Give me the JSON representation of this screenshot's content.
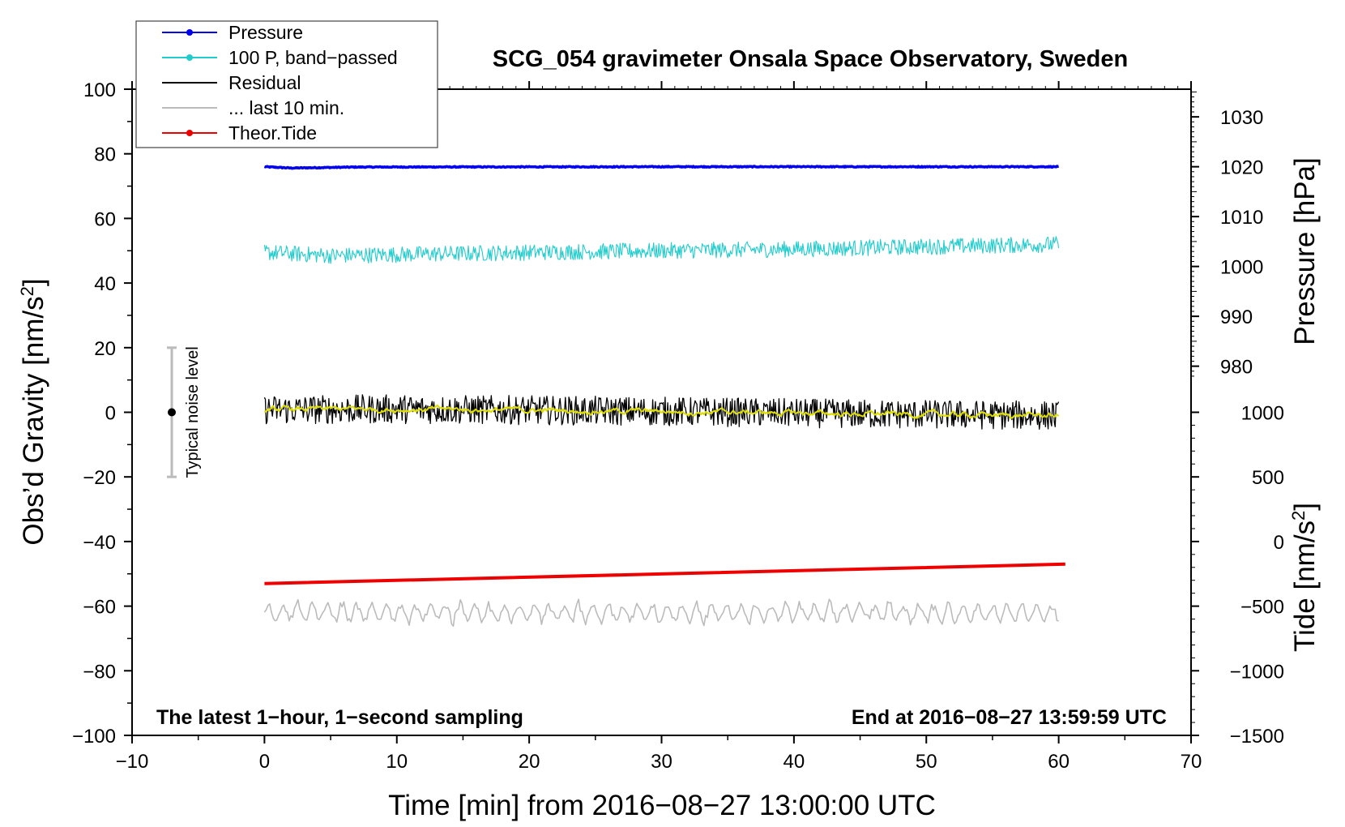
{
  "chart_data": {
    "type": "line",
    "title": "SCG_054 gravimeter Onsala Space Observatory, Sweden",
    "xlabel": "Time [min] from 2016−08−27 13:00:00 UTC",
    "ylabel_main": "Obs’d Gravity [nm/s",
    "ylabel_pressure": "Pressure [hPa]",
    "ylabel_tide": "Tide [nm/s",
    "ylabel_sup": "2",
    "ylabel_close": "]",
    "xlim": [
      -10,
      70
    ],
    "ylim": [
      -100,
      100
    ],
    "x_ticks": [
      "−10",
      "0",
      "10",
      "20",
      "30",
      "40",
      "50",
      "60",
      "70"
    ],
    "y_ticks": [
      "−100",
      "−80",
      "−60",
      "−40",
      "−20",
      "0",
      "20",
      "40",
      "60",
      "80",
      "100"
    ],
    "pressure_ticks": [
      "980",
      "990",
      "1000",
      "1010",
      "1020",
      "1030"
    ],
    "tide_ticks": [
      "−1500",
      "−1000",
      "−500",
      "0",
      "500",
      "1000"
    ],
    "annotation_left": "The latest 1−hour, 1−second sampling",
    "annotation_right": "End at 2016−08−27 13:59:59 UTC",
    "noise_label": "Typical noise level",
    "noise_bar": {
      "x": -7,
      "center": 0,
      "half_range": 20
    },
    "legend": [
      {
        "label": "Pressure",
        "color": "#0000ee",
        "marker": true
      },
      {
        "label": "100 P, band−passed",
        "color": "#22cccc",
        "marker": true
      },
      {
        "label": "Residual",
        "color": "#000000",
        "marker": false
      },
      {
        "label": "... last 10 min.",
        "color": "#bbbbbb",
        "marker": false
      },
      {
        "label": "Theor.Tide",
        "color": "#ee0000",
        "marker": true
      }
    ],
    "series": [
      {
        "name": "Pressure",
        "color": "#0000ee",
        "x": [
          0,
          2,
          7,
          30,
          60
        ],
        "values": [
          76,
          75.6,
          75.9,
          76,
          76
        ],
        "noise": 0.15
      },
      {
        "name": "100 P, band-passed",
        "color": "#22cccc",
        "x": [
          0,
          5,
          20,
          40,
          60
        ],
        "values": [
          49.5,
          48.5,
          49.5,
          50.5,
          52
        ],
        "noise": 2.5
      },
      {
        "name": "Residual",
        "color": "#000000",
        "x": [
          0,
          10,
          30,
          45,
          60
        ],
        "values": [
          0.8,
          1,
          0.3,
          -0.5,
          -1
        ],
        "noise": 4.5
      },
      {
        "name": "Residual smoothed",
        "color": "#dddd00",
        "x": [
          0,
          10,
          30,
          45,
          60
        ],
        "values": [
          0.8,
          1,
          0.3,
          -0.5,
          -1
        ],
        "noise": 0.8
      },
      {
        "name": "Theor.Tide",
        "color": "#ee0000",
        "x": [
          0,
          60.5
        ],
        "values": [
          -53,
          -47
        ],
        "noise": 0
      },
      {
        "name": "... last 10 min.",
        "color": "#bbbbbb",
        "x": [
          0,
          60
        ],
        "values": [
          -62,
          -62
        ],
        "noise": 3
      }
    ]
  }
}
